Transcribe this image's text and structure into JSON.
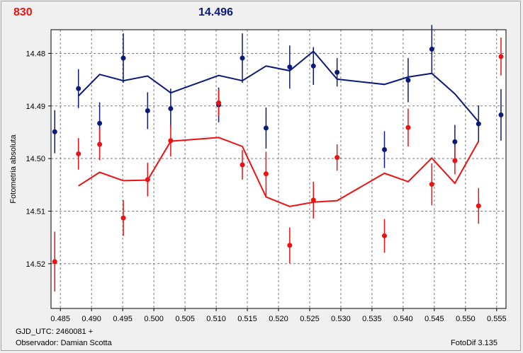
{
  "header": {
    "left_value": "830",
    "right_value": "14.496"
  },
  "footer": {
    "gjd": "GJD_UTC: 2460081 +",
    "observer": "Observador: Damian Scotta",
    "software": "FotoDif 3.135"
  },
  "colors": {
    "red": "#ee1111",
    "blue": "#0b1a7a",
    "grid": "#7a7a7a"
  },
  "chart_data": {
    "type": "scatter",
    "ylabel": "Fotometria absoluta",
    "xlim": [
      0.4835,
      0.5565
    ],
    "ylim": [
      14.5285,
      14.4755
    ],
    "y_inverted": true,
    "grid": true,
    "x_ticks": [
      "0.485",
      "0.490",
      "0.495",
      "0.500",
      "0.505",
      "0.510",
      "0.515",
      "0.520",
      "0.525",
      "0.530",
      "0.535",
      "0.540",
      "0.545",
      "0.550",
      "0.555"
    ],
    "y_ticks": [
      "14.48",
      "14.49",
      "14.50",
      "14.51",
      "14.52"
    ],
    "series": [
      {
        "color": "blue",
        "points": [
          {
            "x": 0.4841,
            "y": 14.4949,
            "err": 0.0041
          },
          {
            "x": 0.4879,
            "y": 14.4867,
            "err": 0.0037
          },
          {
            "x": 0.4913,
            "y": 14.4933,
            "err": 0.004
          },
          {
            "x": 0.4951,
            "y": 14.4809,
            "err": 0.0047
          },
          {
            "x": 0.499,
            "y": 14.4909,
            "err": 0.0035
          },
          {
            "x": 0.5027,
            "y": 14.4905,
            "err": 0.0038
          },
          {
            "x": 0.5104,
            "y": 14.4898,
            "err": 0.0033
          },
          {
            "x": 0.5142,
            "y": 14.4809,
            "err": 0.0047
          },
          {
            "x": 0.518,
            "y": 14.4942,
            "err": 0.0039
          },
          {
            "x": 0.5218,
            "y": 14.4826,
            "err": 0.0041
          },
          {
            "x": 0.5256,
            "y": 14.4824,
            "err": 0.0036
          },
          {
            "x": 0.5294,
            "y": 14.4836,
            "err": 0.0027
          },
          {
            "x": 0.537,
            "y": 14.4983,
            "err": 0.0035
          },
          {
            "x": 0.5408,
            "y": 14.4851,
            "err": 0.0042
          },
          {
            "x": 0.5446,
            "y": 14.4792,
            "err": 0.0046
          },
          {
            "x": 0.5483,
            "y": 14.4968,
            "err": 0.0032
          },
          {
            "x": 0.5521,
            "y": 14.4934,
            "err": 0.0035
          },
          {
            "x": 0.5557,
            "y": 14.4917,
            "err": 0.0049
          }
        ],
        "line": [
          {
            "x": 0.4879,
            "y": 14.4881
          },
          {
            "x": 0.4913,
            "y": 14.484
          },
          {
            "x": 0.4951,
            "y": 14.4852
          },
          {
            "x": 0.499,
            "y": 14.4843
          },
          {
            "x": 0.5027,
            "y": 14.4875
          },
          {
            "x": 0.5104,
            "y": 14.4842
          },
          {
            "x": 0.5142,
            "y": 14.4852
          },
          {
            "x": 0.518,
            "y": 14.4824
          },
          {
            "x": 0.5218,
            "y": 14.4833
          },
          {
            "x": 0.5256,
            "y": 14.4796
          },
          {
            "x": 0.5294,
            "y": 14.4849
          },
          {
            "x": 0.537,
            "y": 14.4859
          },
          {
            "x": 0.5408,
            "y": 14.4845
          },
          {
            "x": 0.5446,
            "y": 14.4838
          },
          {
            "x": 0.5483,
            "y": 14.4877
          },
          {
            "x": 0.5521,
            "y": 14.493
          }
        ]
      },
      {
        "color": "red",
        "points": [
          {
            "x": 0.4841,
            "y": 14.5196,
            "err": 0.0057
          },
          {
            "x": 0.4879,
            "y": 14.4991,
            "err": 0.003
          },
          {
            "x": 0.4913,
            "y": 14.4973,
            "err": 0.003
          },
          {
            "x": 0.4951,
            "y": 14.5113,
            "err": 0.0034
          },
          {
            "x": 0.499,
            "y": 14.504,
            "err": 0.0032
          },
          {
            "x": 0.5027,
            "y": 14.4966,
            "err": 0.003
          },
          {
            "x": 0.5104,
            "y": 14.4894,
            "err": 0.0025
          },
          {
            "x": 0.5142,
            "y": 14.5012,
            "err": 0.0028
          },
          {
            "x": 0.518,
            "y": 14.5029,
            "err": 0.0042
          },
          {
            "x": 0.5218,
            "y": 14.5165,
            "err": 0.0034
          },
          {
            "x": 0.5256,
            "y": 14.5079,
            "err": 0.0035
          },
          {
            "x": 0.5294,
            "y": 14.4998,
            "err": 0.0025
          },
          {
            "x": 0.537,
            "y": 14.5147,
            "err": 0.0032
          },
          {
            "x": 0.5408,
            "y": 14.4941,
            "err": 0.0036
          },
          {
            "x": 0.5446,
            "y": 14.5049,
            "err": 0.004
          },
          {
            "x": 0.5483,
            "y": 14.5004,
            "err": 0.0026
          },
          {
            "x": 0.5521,
            "y": 14.509,
            "err": 0.0034
          },
          {
            "x": 0.5557,
            "y": 14.4806,
            "err": 0.0036
          }
        ],
        "line": [
          {
            "x": 0.4879,
            "y": 14.5052
          },
          {
            "x": 0.4913,
            "y": 14.5026
          },
          {
            "x": 0.4951,
            "y": 14.5042
          },
          {
            "x": 0.499,
            "y": 14.5041
          },
          {
            "x": 0.5027,
            "y": 14.4967
          },
          {
            "x": 0.5104,
            "y": 14.496
          },
          {
            "x": 0.5142,
            "y": 14.4977
          },
          {
            "x": 0.518,
            "y": 14.5073
          },
          {
            "x": 0.5218,
            "y": 14.5091
          },
          {
            "x": 0.5256,
            "y": 14.5083
          },
          {
            "x": 0.5294,
            "y": 14.508
          },
          {
            "x": 0.537,
            "y": 14.5028
          },
          {
            "x": 0.5408,
            "y": 14.5044
          },
          {
            "x": 0.5446,
            "y": 14.4999
          },
          {
            "x": 0.5483,
            "y": 14.5047
          },
          {
            "x": 0.5521,
            "y": 14.4967
          }
        ]
      }
    ]
  }
}
